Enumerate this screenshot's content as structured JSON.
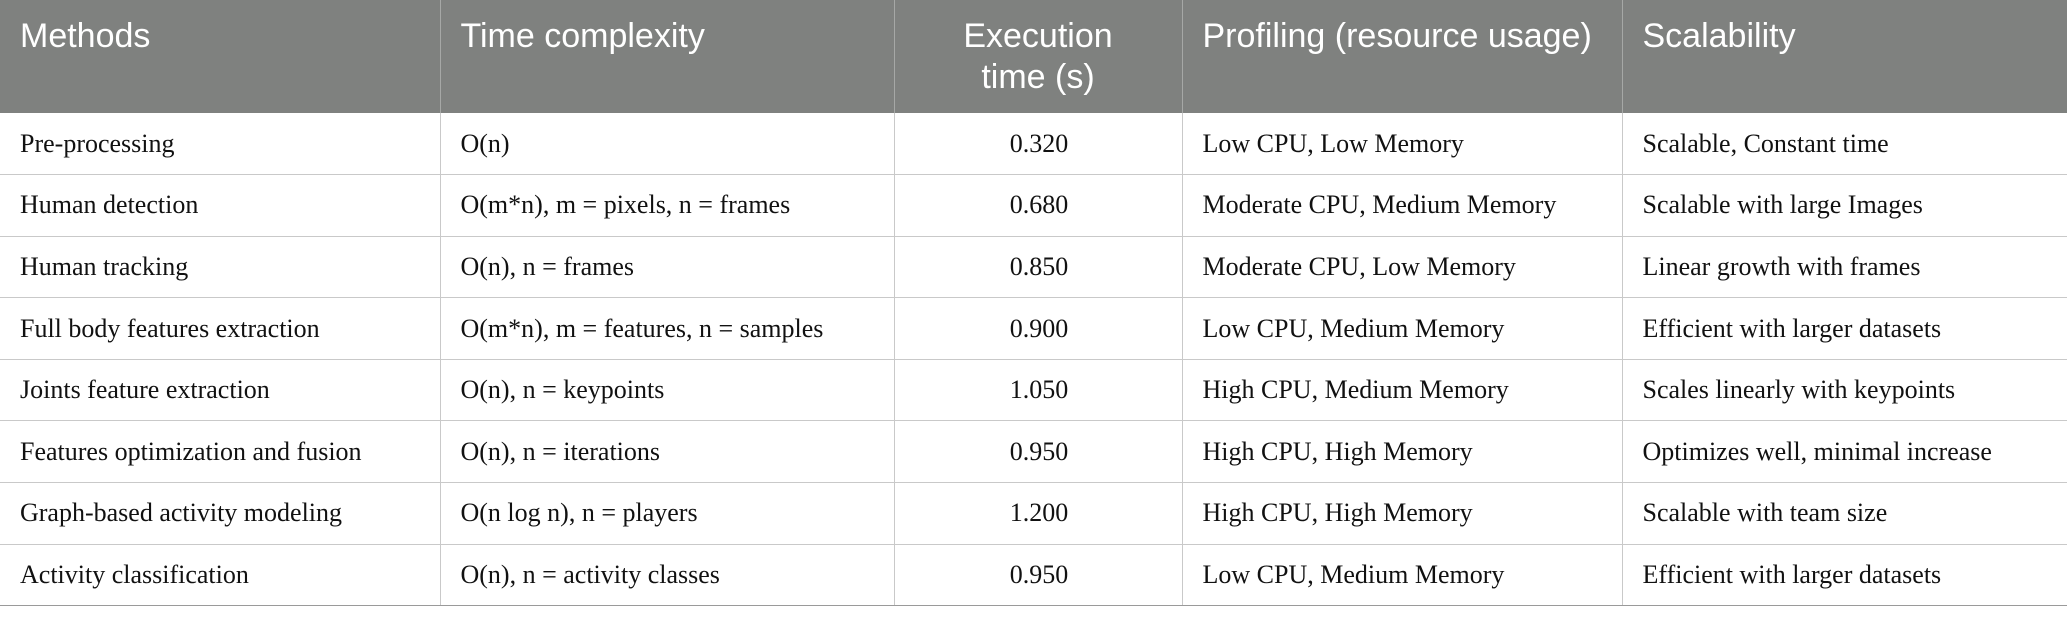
{
  "table": {
    "headers": [
      "Methods",
      "Time complexity",
      "Execution time (s)",
      "Profiling (resource usage)",
      "Scalability"
    ],
    "rows": [
      [
        "Pre-processing",
        "O(n)",
        "0.320",
        "Low CPU, Low Memory",
        "Scalable, Constant time"
      ],
      [
        "Human detection",
        "O(m*n), m = pixels, n = frames",
        "0.680",
        "Moderate CPU, Medium Memory",
        "Scalable with large Images"
      ],
      [
        "Human tracking",
        "O(n), n = frames",
        "0.850",
        "Moderate CPU, Low Memory",
        "Linear growth with frames"
      ],
      [
        "Full body features extraction",
        "O(m*n), m = features, n = samples",
        "0.900",
        "Low CPU, Medium Memory",
        "Efficient with larger datasets"
      ],
      [
        "Joints feature extraction",
        "O(n), n = keypoints",
        "1.050",
        "High CPU, Medium Memory",
        "Scales linearly with keypoints"
      ],
      [
        "Features optimization and fusion",
        "O(n), n = iterations",
        "0.950",
        "High CPU, High Memory",
        "Optimizes well, minimal increase"
      ],
      [
        "Graph-based activity modeling",
        "O(n log n), n = players",
        "1.200",
        "High CPU, High Memory",
        "Scalable with team size"
      ],
      [
        "Activity classification",
        "O(n), n = activity classes",
        "0.950",
        "Low CPU, Medium Memory",
        "Efficient with larger datasets"
      ]
    ]
  }
}
